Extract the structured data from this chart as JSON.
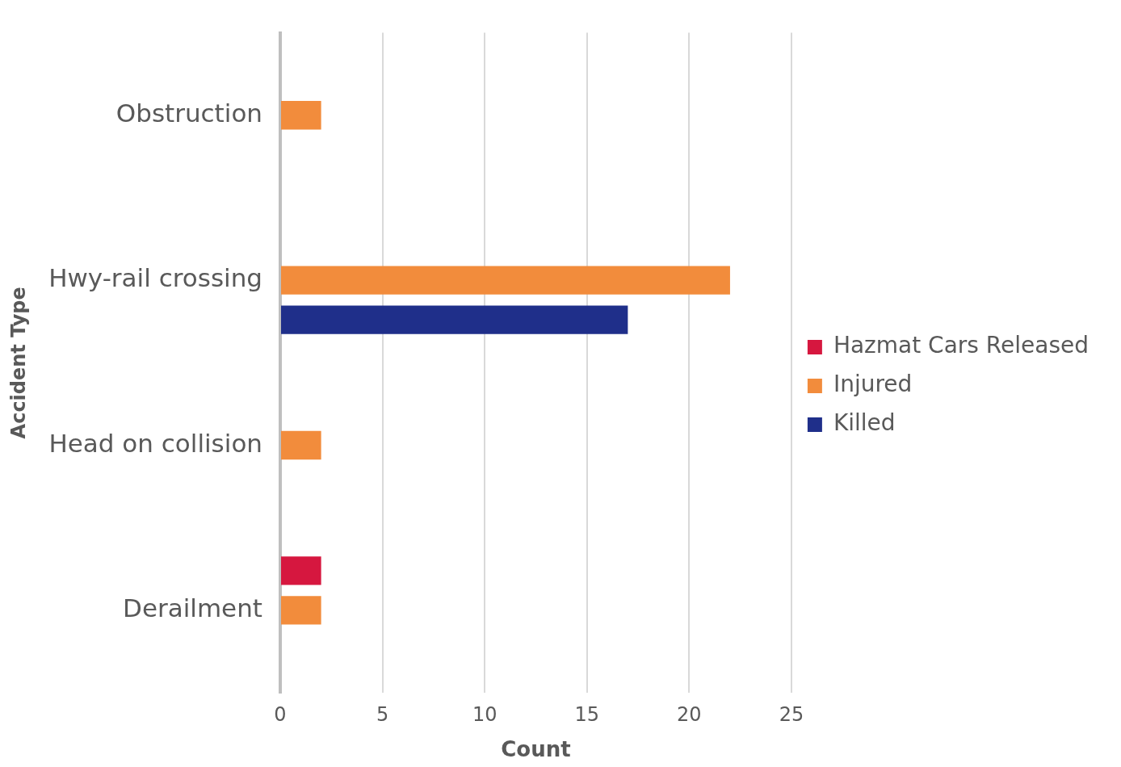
{
  "chart_data": {
    "type": "bar",
    "orientation": "horizontal",
    "categories": [
      "Obstruction",
      "Hwy-rail crossing",
      "Head on collision",
      "Derailment"
    ],
    "series": [
      {
        "name": "Hazmat Cars Released",
        "color": "#d6173f",
        "values": [
          0,
          0,
          0,
          2
        ]
      },
      {
        "name": "Injured",
        "color": "#f28c3c",
        "values": [
          2,
          22,
          2,
          2
        ]
      },
      {
        "name": "Killed",
        "color": "#1f2f8a",
        "values": [
          0,
          17,
          0,
          0
        ]
      }
    ],
    "xlabel": "Count",
    "ylabel": "Accident Type",
    "xlim": [
      0,
      25
    ],
    "xticks": [
      0,
      5,
      10,
      15,
      20,
      25
    ],
    "grid": "x",
    "legend": "right"
  }
}
